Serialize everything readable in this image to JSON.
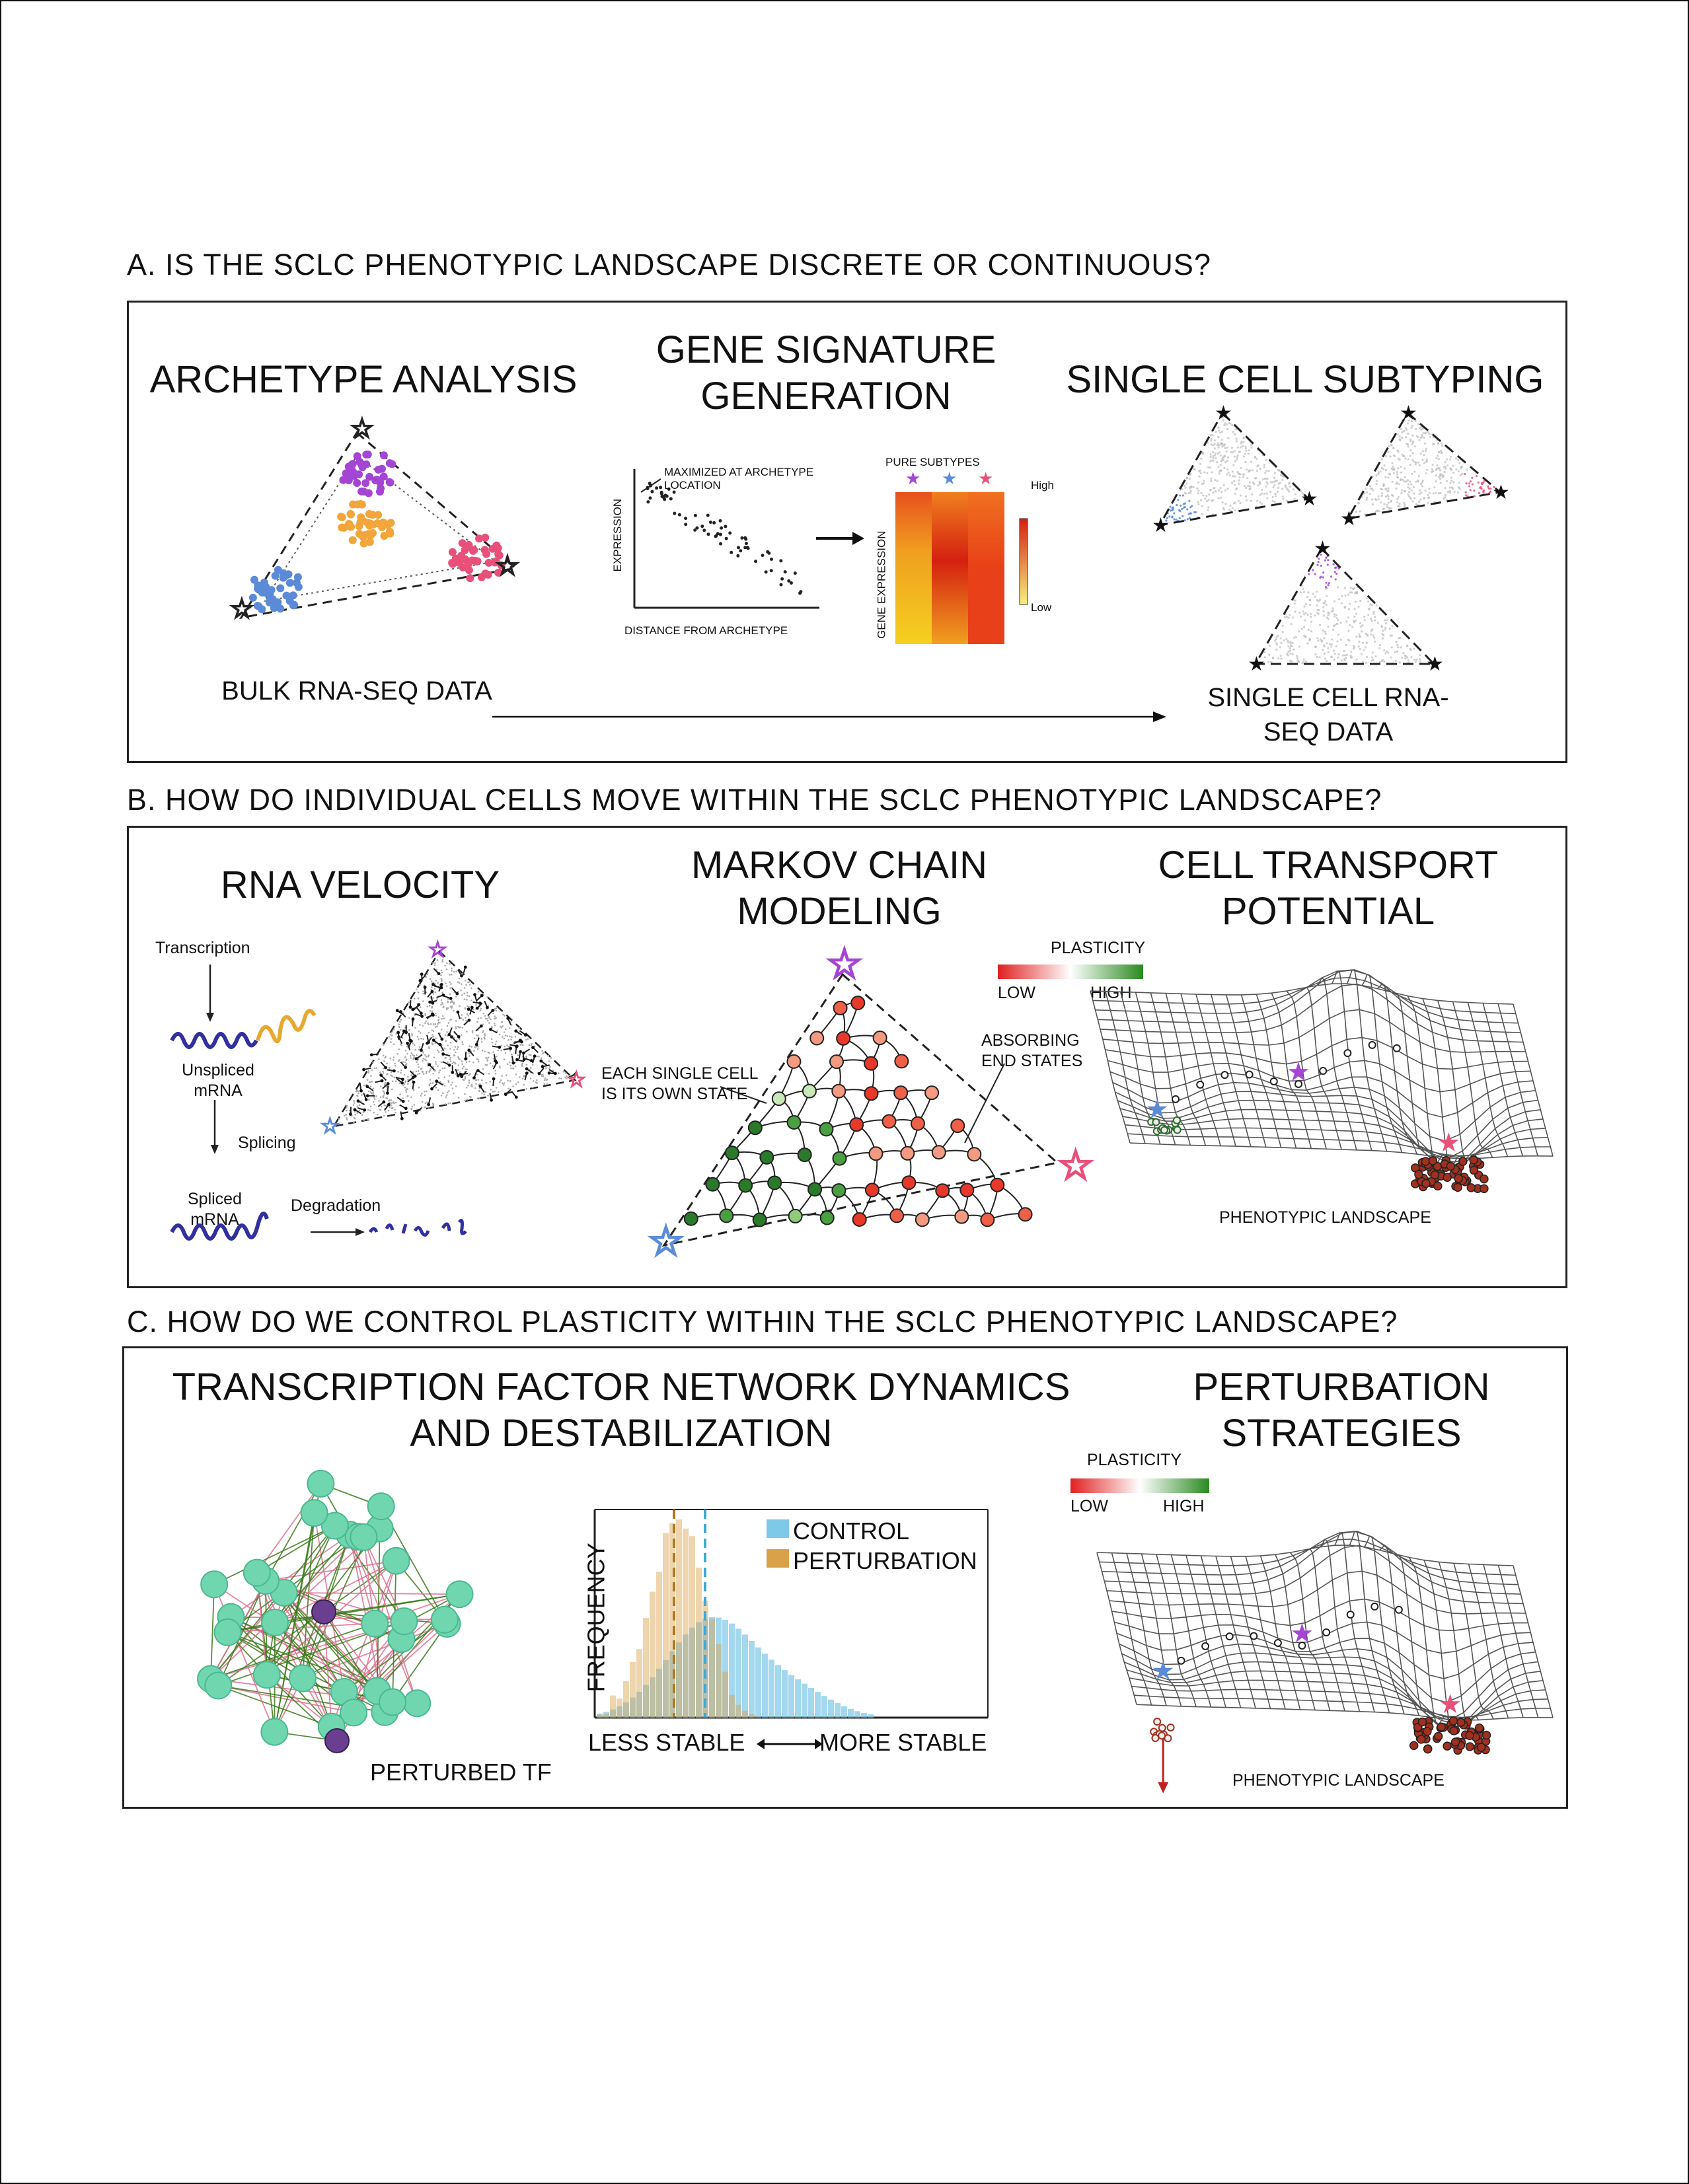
{
  "sections": {
    "a": {
      "title": "A. IS THE SCLC PHENOTYPIC LANDSCAPE DISCRETE OR CONTINUOUS?",
      "archetype": {
        "heading": "ARCHETYPE ANALYSIS",
        "data_label": "BULK RNA-SEQ DATA"
      },
      "signature": {
        "heading": "GENE SIGNATURE GENERATION",
        "annotation": "MAXIMIZED AT ARCHETYPE LOCATION",
        "ylabel": "EXPRESSION",
        "xlabel": "DISTANCE FROM ARCHETYPE",
        "heatmap_title": "PURE SUBTYPES",
        "heatmap_ylabel": "GENE EXPRESSION",
        "high": "High",
        "low": "Low"
      },
      "single_cell": {
        "heading": "SINGLE CELL SUBTYPING",
        "data_label": "SINGLE CELL RNA-SEQ DATA"
      }
    },
    "b": {
      "title": "B. HOW DO INDIVIDUAL CELLS MOVE WITHIN THE SCLC PHENOTYPIC LANDSCAPE?",
      "velocity": {
        "heading": "RNA VELOCITY",
        "transcription": "Transcription",
        "unspliced": "Unspliced mRNA",
        "splicing": "Splicing",
        "spliced": "Spliced mRNA",
        "degradation": "Degradation"
      },
      "markov": {
        "heading": "MARKOV CHAIN MODELING",
        "each_cell": "EACH SINGLE CELL IS ITS OWN STATE",
        "absorbing": "ABSORBING END STATES"
      },
      "transport": {
        "heading": "CELL TRANSPORT POTENTIAL",
        "plasticity": "PLASTICITY",
        "low": "LOW",
        "high": "HIGH",
        "landscape": "PHENOTYPIC LANDSCAPE"
      }
    },
    "c": {
      "title": "C. HOW DO WE CONTROL PLASTICITY WITHIN THE SCLC PHENOTYPIC LANDSCAPE?",
      "network": {
        "heading": "TRANSCRIPTION FACTOR NETWORK DYNAMICS AND DESTABILIZATION",
        "perturbed": "PERTURBED TF"
      },
      "histogram": {
        "ylabel": "FREQUENCY",
        "less": "LESS STABLE",
        "more": "MORE STABLE",
        "legend_control": "CONTROL",
        "legend_perturbation": "PERTURBATION"
      },
      "perturbation": {
        "heading": "PERTURBATION STRATEGIES",
        "plasticity": "PLASTICITY",
        "low": "LOW",
        "high": "HIGH",
        "landscape": "PHENOTYPIC LANDSCAPE"
      }
    }
  },
  "colors": {
    "blue": "#5b8bd8",
    "purple": "#a445d4",
    "pink": "#e8507a",
    "orange": "#f2a53a",
    "control": "#7ec8e8",
    "perturbation": "#d9a24a",
    "node": "#6fd6b0",
    "perturbed_node": "#6b3f8f"
  }
}
